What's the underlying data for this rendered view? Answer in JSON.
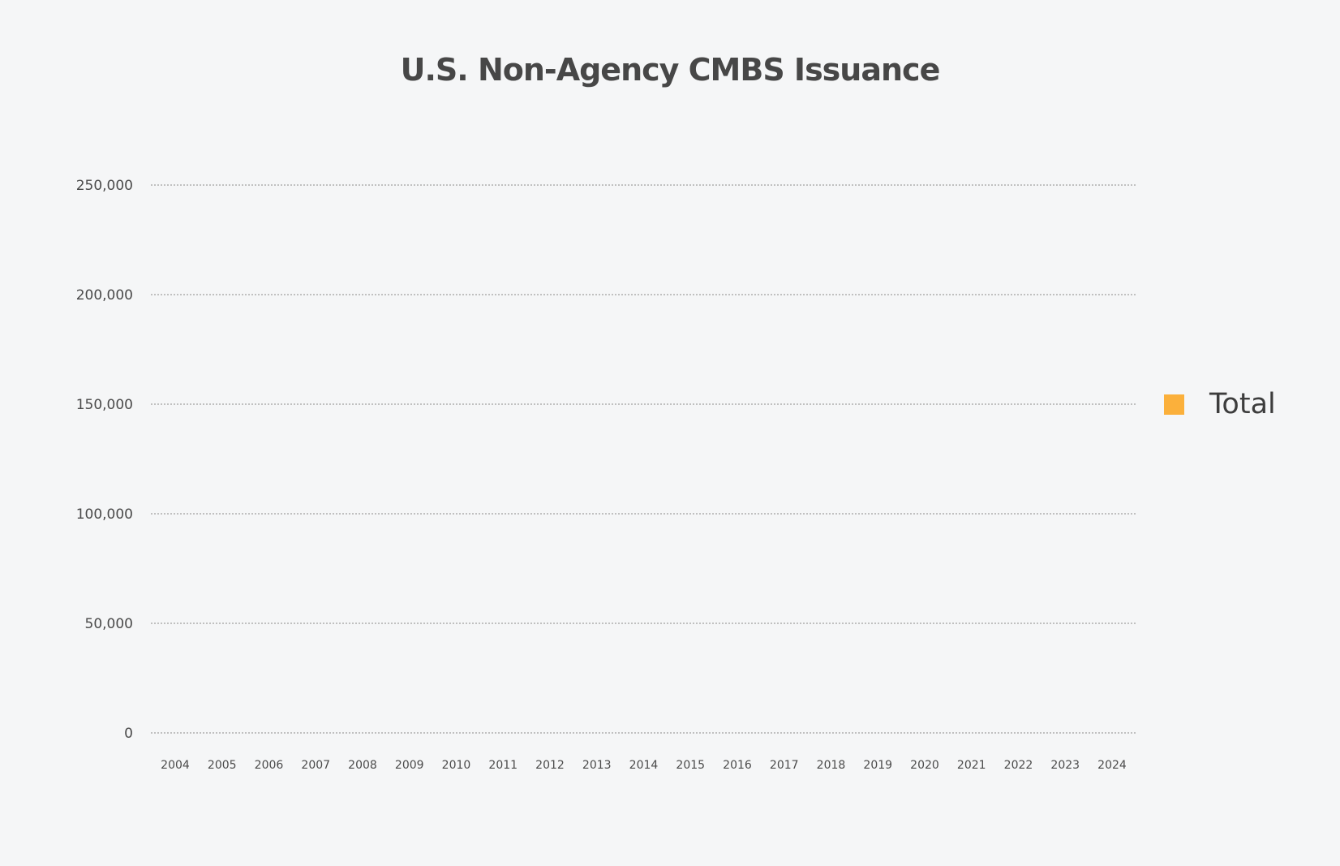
{
  "chart_data": {
    "type": "bar",
    "title": "U.S. Non-Agency CMBS Issuance",
    "xlabel": "",
    "ylabel": "",
    "categories": [
      "2004",
      "2005",
      "2006",
      "2007",
      "2008",
      "2009",
      "2010",
      "2011",
      "2012",
      "2013",
      "2014",
      "2015",
      "2016",
      "2017",
      "2018",
      "2019",
      "2020",
      "2021",
      "2022",
      "2023",
      "2024"
    ],
    "series": [
      {
        "name": "Total",
        "color": "#fbb03b",
        "values": [
          0,
          0,
          0,
          0,
          0,
          0,
          0,
          0,
          0,
          0,
          0,
          0,
          0,
          0,
          0,
          0,
          0,
          0,
          0,
          0,
          0
        ]
      }
    ],
    "ylim": [
      0,
      250000
    ],
    "yticks": [
      0,
      50000,
      100000,
      150000,
      200000,
      250000
    ],
    "ytick_labels": [
      "0",
      "50,000",
      "100,000",
      "150,000",
      "200,000",
      "250,000"
    ],
    "grid": true,
    "legend_position": "right"
  }
}
